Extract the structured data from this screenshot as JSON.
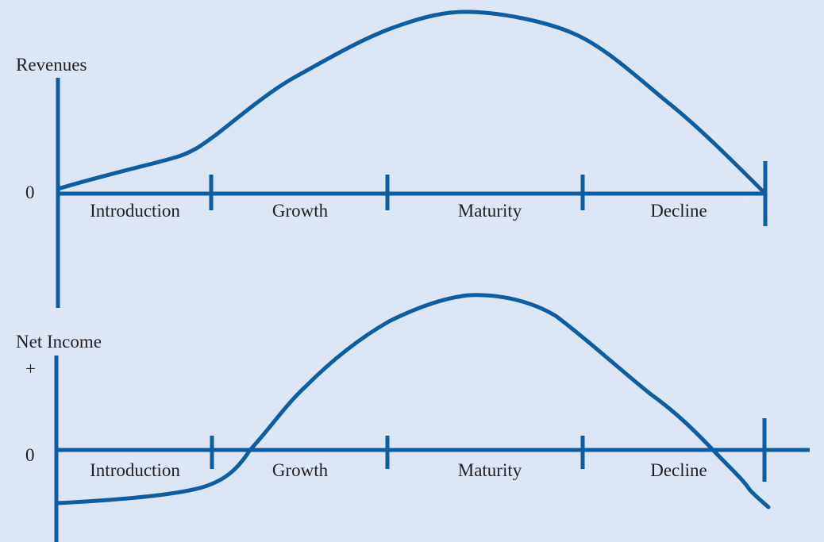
{
  "colors": {
    "background": "#dce6f4",
    "line": "#0b5ea4",
    "text": "#231f20"
  },
  "revenues_panel": {
    "y_label": "Revenues",
    "zero_label": "0",
    "stages": [
      "Introduction",
      "Growth",
      "Maturity",
      "Decline"
    ]
  },
  "net_income_panel": {
    "y_label": "Net Income",
    "plus_label": "+",
    "zero_label": "0",
    "stages": [
      "Introduction",
      "Growth",
      "Maturity",
      "Decline"
    ]
  }
}
